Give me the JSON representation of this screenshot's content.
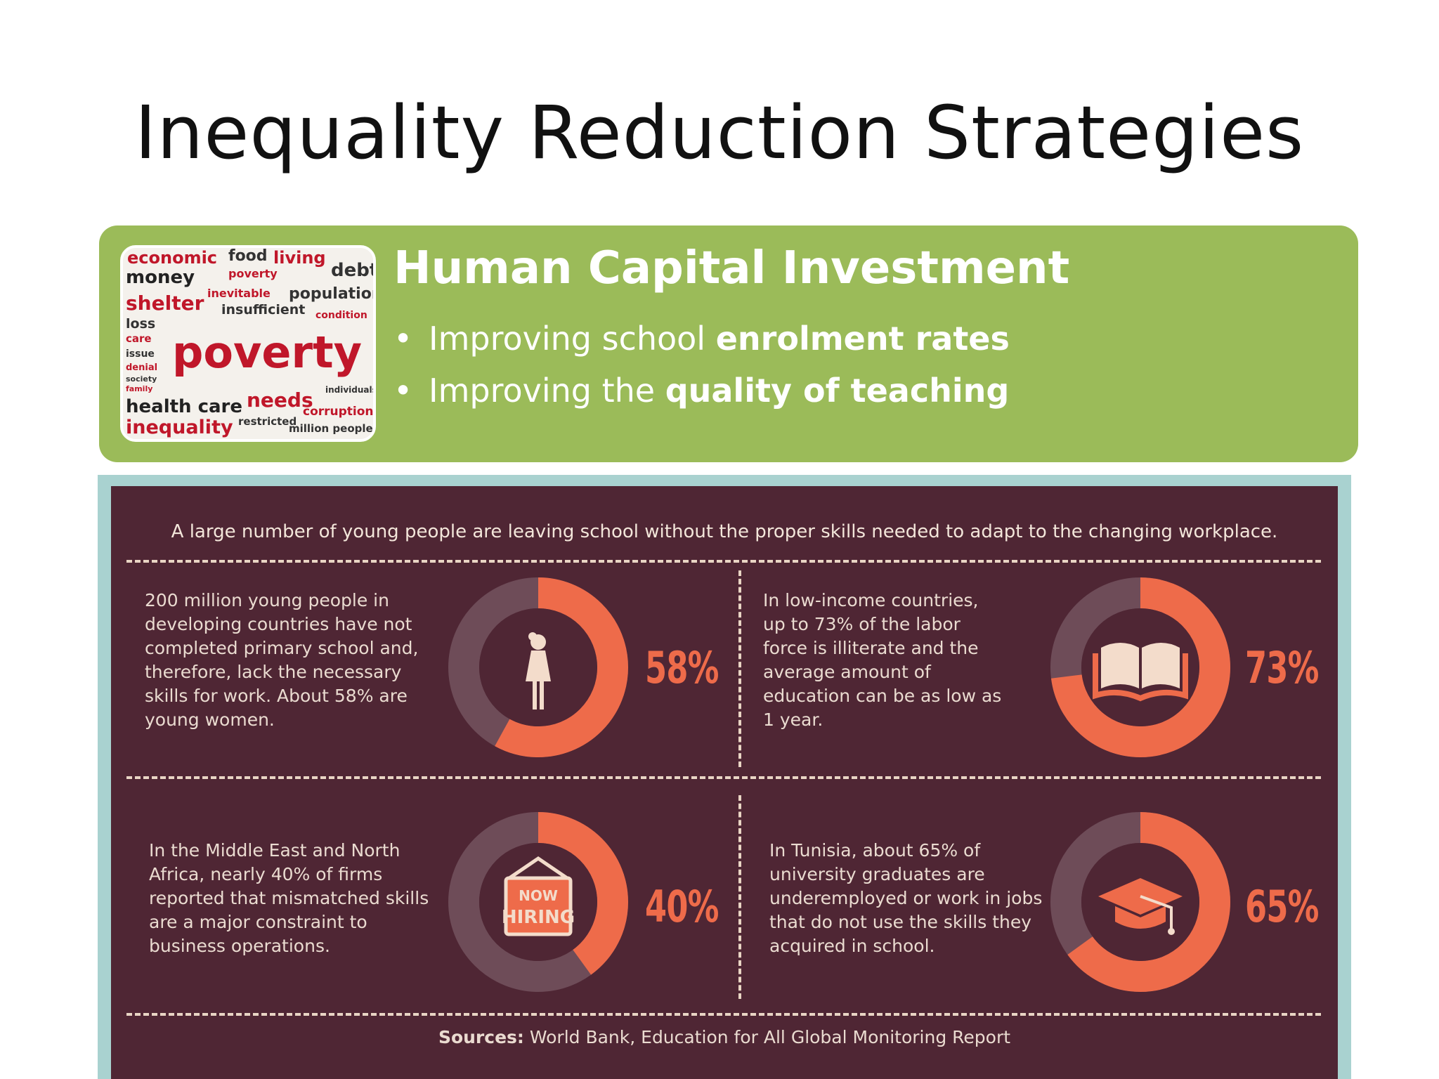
{
  "slide": {
    "title": "Inequality Reduction Strategies"
  },
  "panel": {
    "heading": "Human Capital Investment",
    "bullets": [
      {
        "text": "Improving school ",
        "bold": "enrolment rates"
      },
      {
        "text": "Improving the ",
        "bold": "quality of teaching"
      }
    ],
    "collage_words": [
      "economic",
      "food",
      "living",
      "debt",
      "money",
      "poverty",
      "inevitable",
      "population",
      "shelter",
      "insufficient",
      "condition",
      "loss",
      "care",
      "issue",
      "denial",
      "society",
      "family",
      "health care",
      "needs",
      "individuals",
      "corruption",
      "inequality",
      "restricted",
      "million people"
    ]
  },
  "infographic": {
    "headline": "A large number of young people are leaving school without the proper skills needed to adapt to the changing workplace.",
    "stats": [
      {
        "text": "200 million young people in developing countries have not completed primary school and, therefore, lack the necessary skills for work. About 58% are young women.",
        "percent_label": "58%",
        "value": 58,
        "icon": "woman-icon"
      },
      {
        "text": "In low-income countries, up to 73% of the labor force is illiterate and the average amount of education can be as low as 1 year.",
        "percent_label": "73%",
        "value": 73,
        "icon": "open-book-icon"
      },
      {
        "text": "In the Middle East and North Africa, nearly 40% of firms reported that mismatched skills are a major constraint to business operations.",
        "percent_label": "40%",
        "value": 40,
        "icon": "now-hiring-sign-icon",
        "sign_text": [
          "NOW",
          "HIRING"
        ]
      },
      {
        "text": "In Tunisia, about 65% of university graduates are underemployed or work in jobs that do not use the skills they acquired in school.",
        "percent_label": "65%",
        "value": 65,
        "icon": "graduation-cap-icon"
      }
    ],
    "sources_label": "Sources:",
    "sources_text": " World Bank, Education for All Global Monitoring Report"
  },
  "colors": {
    "green": "#9bbb59",
    "maroon": "#4f2634",
    "orange": "#ee6b4a",
    "donut_track": "#6e4c58",
    "frame": "#a9d2d0"
  }
}
